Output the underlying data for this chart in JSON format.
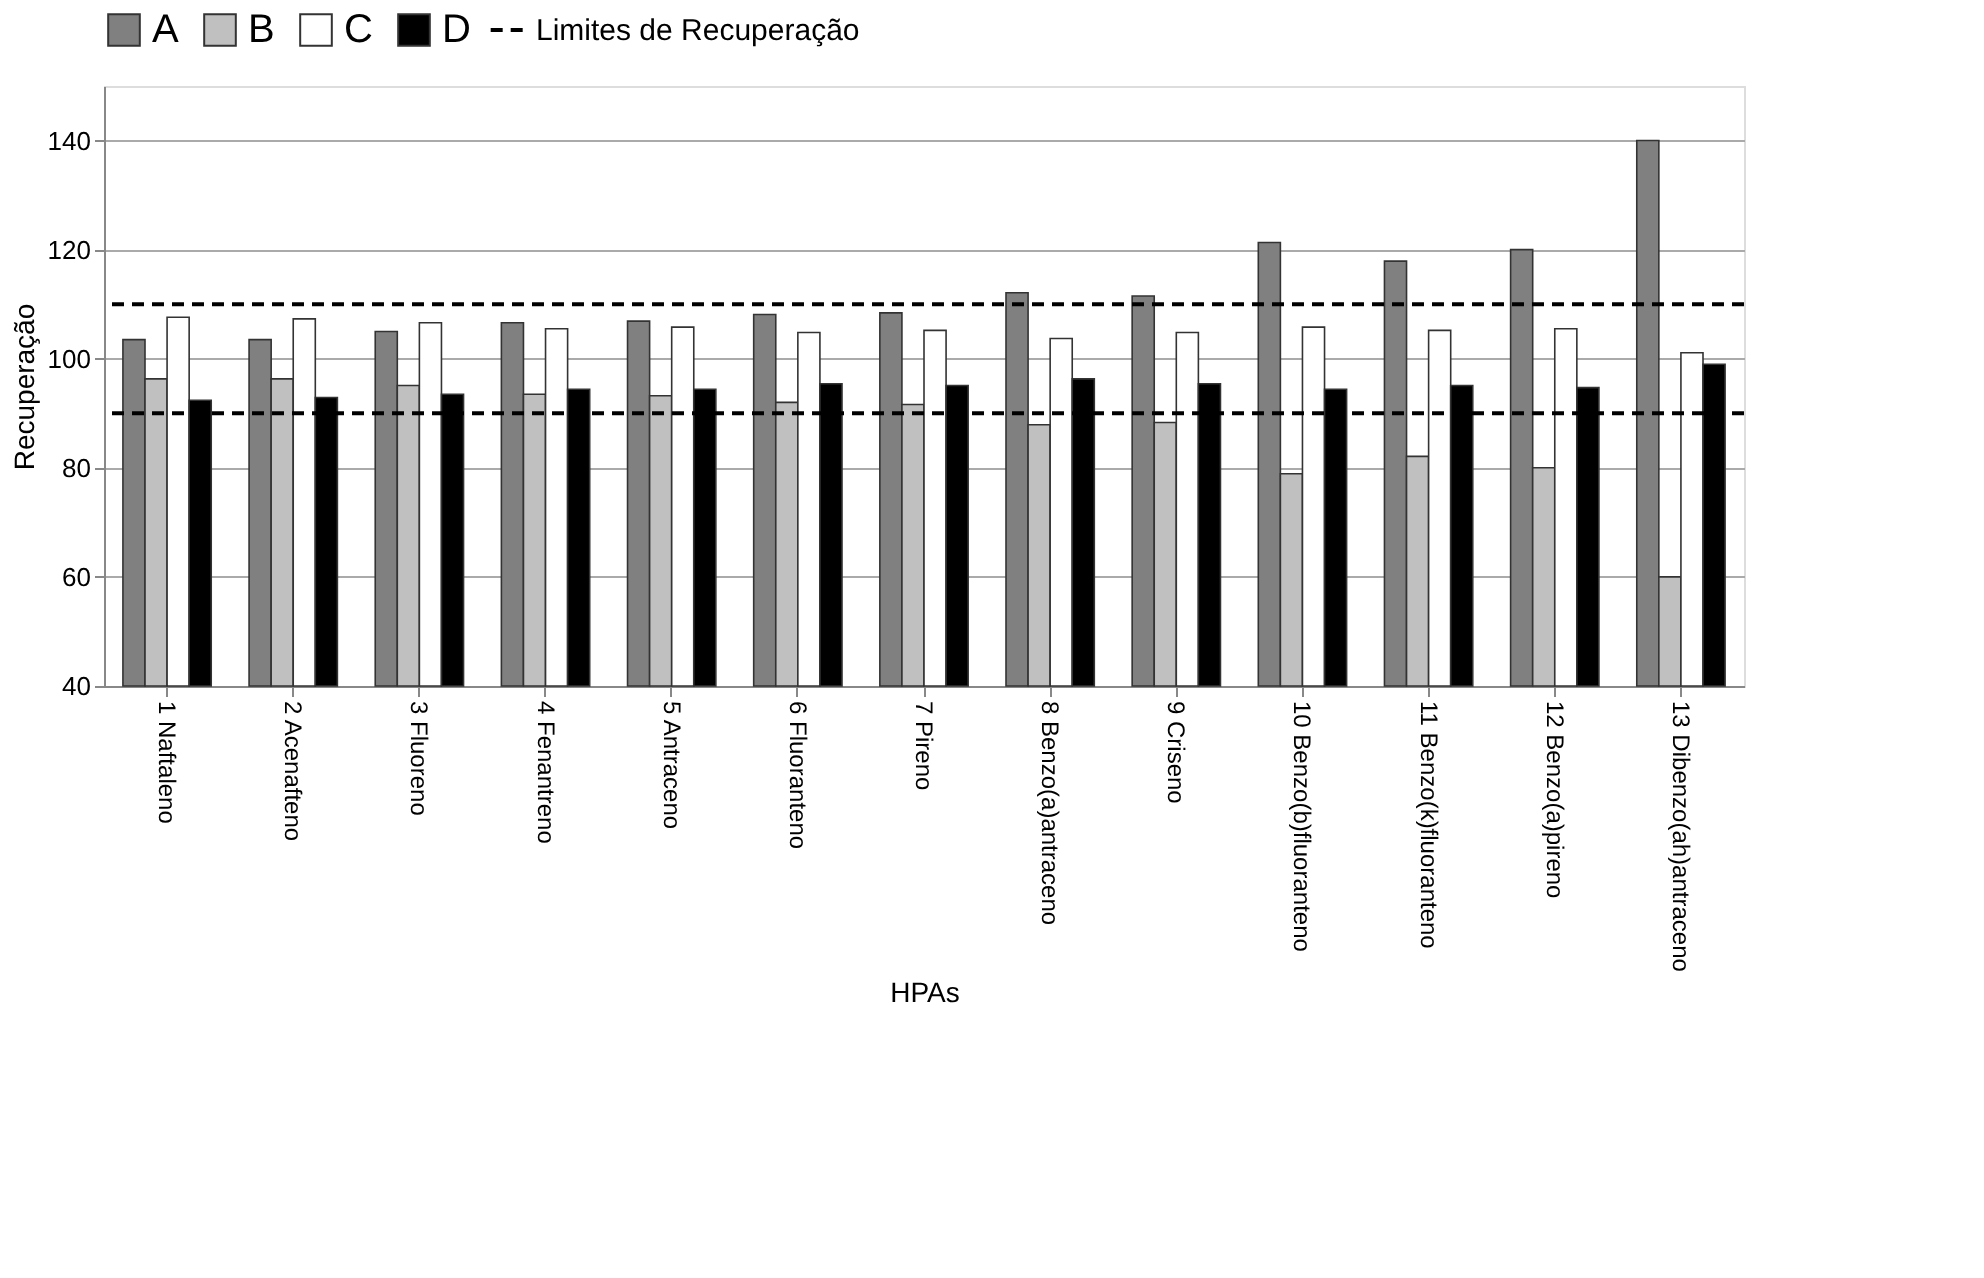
{
  "chart_data": {
    "type": "bar",
    "xlabel": "HPAs",
    "ylabel": "Recuperação",
    "categories": [
      "1 Naftaleno",
      "2 Acenafteno",
      "3 Fluoreno",
      "4 Fenantreno",
      "5 Antraceno",
      "6 Fluoranteno",
      "7 Pireno",
      "8 Benzo(a)antraceno",
      "9 Criseno",
      "10 Benzo(b)fluoranteno",
      "11 Benzo(k)fluoranteno",
      "12 Benzo(a)pireno",
      "13 Dibenzo(ah)antraceno"
    ],
    "series": [
      {
        "name": "A",
        "color": "#808080",
        "values": [
          103.5,
          103.5,
          105,
          106.6,
          106.9,
          108.1,
          108.4,
          112.1,
          111.5,
          121.3,
          117.9,
          120,
          140
        ]
      },
      {
        "name": "B",
        "color": "#c0c0c0",
        "values": [
          96.3,
          96.3,
          95.1,
          93.5,
          93.2,
          92,
          91.6,
          87.9,
          88.3,
          78.9,
          82.1,
          80,
          60
        ]
      },
      {
        "name": "C",
        "color": "#ffffff",
        "values": [
          107.6,
          107.3,
          106.6,
          105.5,
          105.8,
          104.8,
          105.2,
          103.7,
          104.8,
          105.8,
          105.2,
          105.5,
          101.1
        ]
      },
      {
        "name": "D",
        "color": "#000000",
        "values": [
          92.4,
          92.9,
          93.5,
          94.4,
          94.4,
          95.4,
          95.1,
          96.3,
          95.4,
          94.4,
          95.1,
          94.7,
          99
        ]
      }
    ],
    "ylim": [
      40,
      150
    ],
    "yticks": [
      40,
      60,
      80,
      100,
      120,
      140
    ],
    "grid": "y",
    "legend": "top",
    "ref_lines": [
      {
        "axis": "y",
        "value": 110,
        "label": "Limites de Recuperação",
        "color": "#000000",
        "line_style": "dashed"
      },
      {
        "axis": "y",
        "value": 90,
        "label": null,
        "color": "#000000",
        "line_style": "dashed"
      }
    ]
  }
}
